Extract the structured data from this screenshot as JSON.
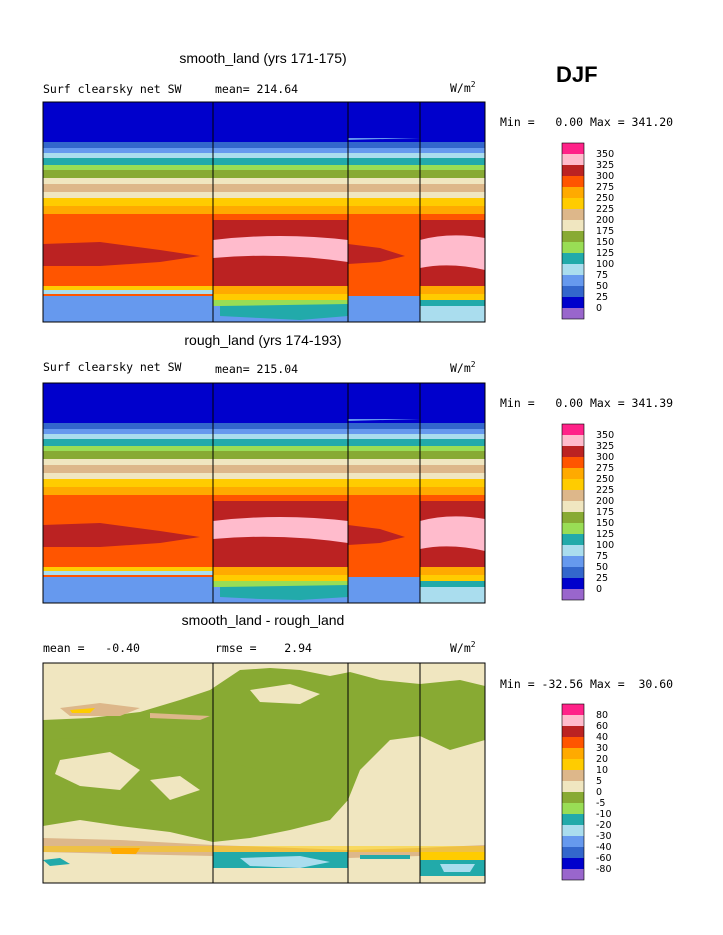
{
  "season": "DJF",
  "panels": [
    {
      "title": "smooth_land (yrs 171-175)",
      "left_label": "Surf clearsky net SW",
      "mid_label": "mean= 214.64",
      "units": "W/m",
      "units_sup": "2",
      "range_text": "Min =   0.00 Max = 341.20",
      "colorbar": {
        "colors": [
          "#9966cc",
          "#0000cc",
          "#3366cc",
          "#6699ee",
          "#aaddee",
          "#22aaaa",
          "#99dd55",
          "#88aa33",
          "#f0e6c0",
          "#ddb78a",
          "#ffcc00",
          "#ffaa00",
          "#ff5500",
          "#bb2222",
          "#ffbbcc",
          "#ff2288"
        ],
        "labels": [
          "0",
          "25",
          "50",
          "75",
          "100",
          "125",
          "150",
          "175",
          "200",
          "225",
          "250",
          "275",
          "300",
          "325",
          "350"
        ]
      },
      "field": "smooth"
    },
    {
      "title": "rough_land (yrs 174-193)",
      "left_label": "Surf clearsky net SW",
      "mid_label": "mean= 215.04",
      "units": "W/m",
      "units_sup": "2",
      "range_text": "Min =   0.00 Max = 341.39",
      "colorbar": {
        "colors": [
          "#9966cc",
          "#0000cc",
          "#3366cc",
          "#6699ee",
          "#aaddee",
          "#22aaaa",
          "#99dd55",
          "#88aa33",
          "#f0e6c0",
          "#ddb78a",
          "#ffcc00",
          "#ffaa00",
          "#ff5500",
          "#bb2222",
          "#ffbbcc",
          "#ff2288"
        ],
        "labels": [
          "0",
          "25",
          "50",
          "75",
          "100",
          "125",
          "150",
          "175",
          "200",
          "225",
          "250",
          "275",
          "300",
          "325",
          "350"
        ]
      },
      "field": "rough"
    },
    {
      "title": "smooth_land - rough_land",
      "left_label": "mean =   -0.40",
      "mid_label": "rmse =    2.94",
      "units": "W/m",
      "units_sup": "2",
      "range_text": "Min = -32.56 Max =  30.60",
      "colorbar": {
        "colors": [
          "#9966cc",
          "#0000cc",
          "#3366cc",
          "#6699ee",
          "#aaddee",
          "#22aaaa",
          "#99dd55",
          "#88aa33",
          "#f0e6c0",
          "#ddb78a",
          "#ffcc00",
          "#ffaa00",
          "#ff5500",
          "#bb2222",
          "#ffbbcc",
          "#ff2288"
        ],
        "labels": [
          "-80",
          "-60",
          "-40",
          "-30",
          "-20",
          "-10",
          "-5",
          "0",
          "5",
          "10",
          "20",
          "30",
          "40",
          "60",
          "80"
        ]
      },
      "field": "diff"
    }
  ],
  "chart_data": [
    {
      "type": "heatmap",
      "title": "smooth_land (yrs 171-175)",
      "variable": "Surf clearsky net SW",
      "units": "W/m^2",
      "mean": 214.64,
      "min": 0.0,
      "max": 341.2,
      "levels": [
        0,
        25,
        50,
        75,
        100,
        125,
        150,
        175,
        200,
        225,
        250,
        275,
        300,
        325,
        350
      ],
      "latitude_profile_north_to_south": [
        0,
        0,
        25,
        75,
        125,
        150,
        175,
        200,
        225,
        250,
        275,
        300,
        300,
        325,
        300,
        275,
        225,
        125,
        75
      ]
    },
    {
      "type": "heatmap",
      "title": "rough_land (yrs 174-193)",
      "variable": "Surf clearsky net SW",
      "units": "W/m^2",
      "mean": 215.04,
      "min": 0.0,
      "max": 341.39,
      "levels": [
        0,
        25,
        50,
        75,
        100,
        125,
        150,
        175,
        200,
        225,
        250,
        275,
        300,
        325,
        350
      ],
      "latitude_profile_north_to_south": [
        0,
        0,
        25,
        75,
        125,
        150,
        175,
        200,
        225,
        250,
        275,
        300,
        300,
        325,
        300,
        275,
        225,
        125,
        75
      ]
    },
    {
      "type": "heatmap",
      "title": "smooth_land - rough_land",
      "units": "W/m^2",
      "mean": -0.4,
      "rmse": 2.94,
      "min": -32.56,
      "max": 30.6,
      "levels": [
        -80,
        -60,
        -40,
        -30,
        -20,
        -10,
        -5,
        0,
        5,
        10,
        20,
        30,
        40,
        60,
        80
      ]
    }
  ]
}
